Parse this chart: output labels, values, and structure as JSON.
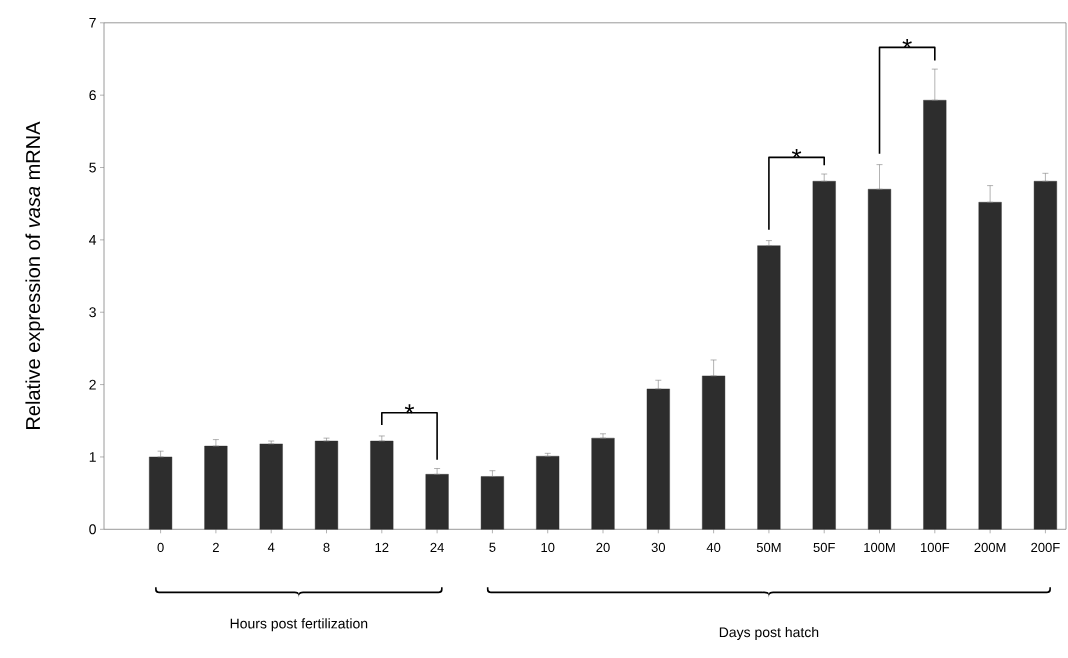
{
  "chart_data": {
    "type": "bar",
    "ylabel": "Relative expression of *vasa* mRNA",
    "categories": [
      "0",
      "2",
      "4",
      "8",
      "12",
      "24",
      "5",
      "10",
      "20",
      "30",
      "40",
      "50M",
      "50F",
      "100M",
      "100F",
      "200M",
      "200F"
    ],
    "values": [
      1.0,
      1.15,
      1.18,
      1.22,
      1.22,
      0.76,
      0.73,
      1.01,
      1.26,
      1.94,
      2.12,
      3.92,
      4.81,
      4.7,
      5.93,
      4.52,
      4.81
    ],
    "errors": [
      [
        1.0,
        1.08
      ],
      [
        1.15,
        1.24
      ],
      [
        1.18,
        1.22
      ],
      [
        1.22,
        1.26
      ],
      [
        1.22,
        1.29
      ],
      [
        0.76,
        0.84
      ],
      [
        0.73,
        0.81
      ],
      [
        1.01,
        1.05
      ],
      [
        1.26,
        1.32
      ],
      [
        1.94,
        2.06
      ],
      [
        2.12,
        2.34
      ],
      [
        3.92,
        3.99
      ],
      [
        4.81,
        4.91
      ],
      [
        4.7,
        5.04
      ],
      [
        5.93,
        6.36
      ],
      [
        4.52,
        4.75
      ],
      [
        4.81,
        4.92
      ]
    ],
    "color": "#2d2d2d",
    "ylim": [
      0,
      7
    ],
    "yticks": [
      0,
      1,
      2,
      3,
      4,
      5,
      6,
      7
    ],
    "annotations": [
      "*",
      "*",
      "*",
      "Hours post fertilization",
      "Days post hatch"
    ]
  }
}
